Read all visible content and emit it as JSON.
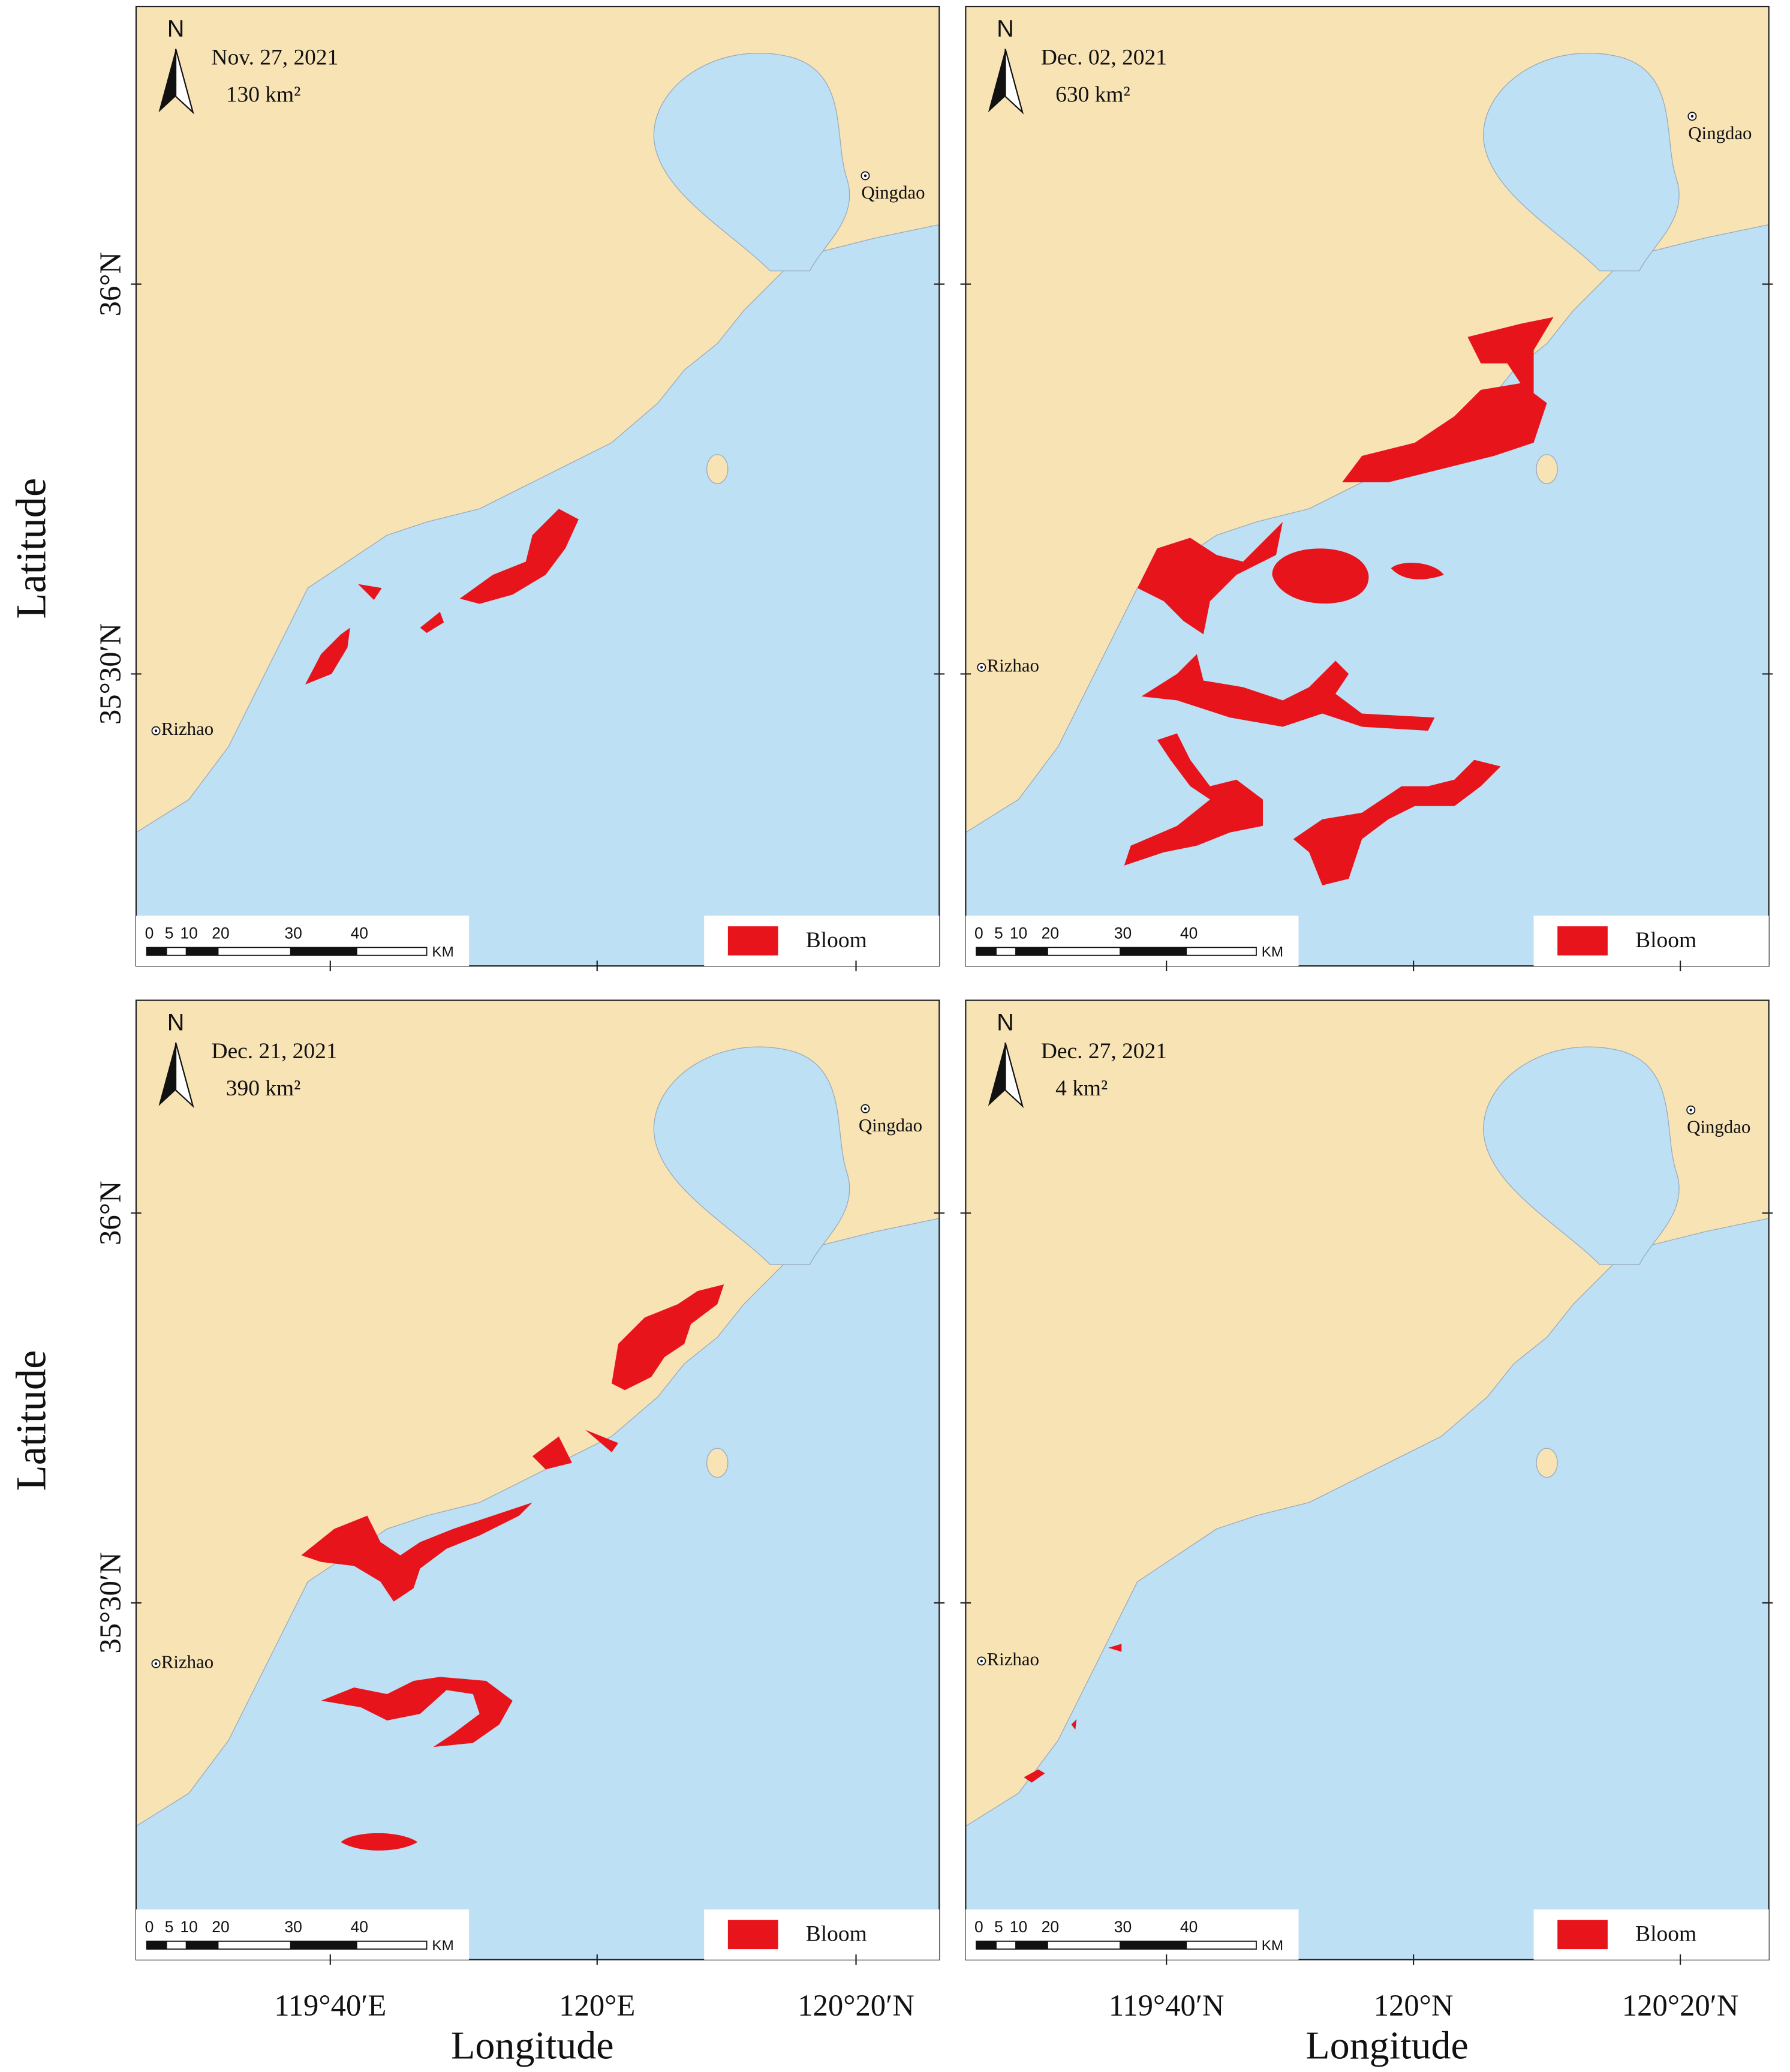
{
  "axes": {
    "rows": [
      {
        "title": "Latitude",
        "lat_ticks": [
          "36°N",
          "35°30′N"
        ]
      },
      {
        "title": "Latitude",
        "lat_ticks": [
          "36°N",
          "35°30′N"
        ]
      }
    ],
    "cols": [
      {
        "title": "Longitude",
        "lon_ticks": [
          "119°40′E",
          "120°E",
          "120°20′N"
        ]
      },
      {
        "title": "Longitude",
        "lon_ticks": [
          "119°40′N",
          "120°N",
          "120°20′N"
        ]
      }
    ]
  },
  "panels": [
    {
      "north": "N",
      "date": "Nov. 27, 2021",
      "area": "130 km²",
      "cities": [
        "Qingdao",
        "Rizhao"
      ],
      "scale_labels": [
        "0",
        "5",
        "10",
        "20",
        "30",
        "40"
      ],
      "scale_unit": "KM",
      "legend": "Bloom"
    },
    {
      "north": "N",
      "date": "Dec. 02, 2021",
      "area": "630 km²",
      "cities": [
        "Qingdao",
        "Rizhao"
      ],
      "scale_labels": [
        "0",
        "5",
        "10",
        "20",
        "30",
        "40"
      ],
      "scale_unit": "KM",
      "legend": "Bloom"
    },
    {
      "north": "N",
      "date": "Dec. 21, 2021",
      "area": "390 km²",
      "cities": [
        "Qingdao",
        "Rizhao"
      ],
      "scale_labels": [
        "0",
        "5",
        "10",
        "20",
        "30",
        "40"
      ],
      "scale_unit": "KM",
      "legend": "Bloom"
    },
    {
      "north": "N",
      "date": "Dec. 27, 2021",
      "area": "4 km²",
      "cities": [
        "Qingdao",
        "Rizhao"
      ],
      "scale_labels": [
        "0",
        "5",
        "10",
        "20",
        "30",
        "40"
      ],
      "scale_unit": "KM",
      "legend": "Bloom"
    }
  ]
}
